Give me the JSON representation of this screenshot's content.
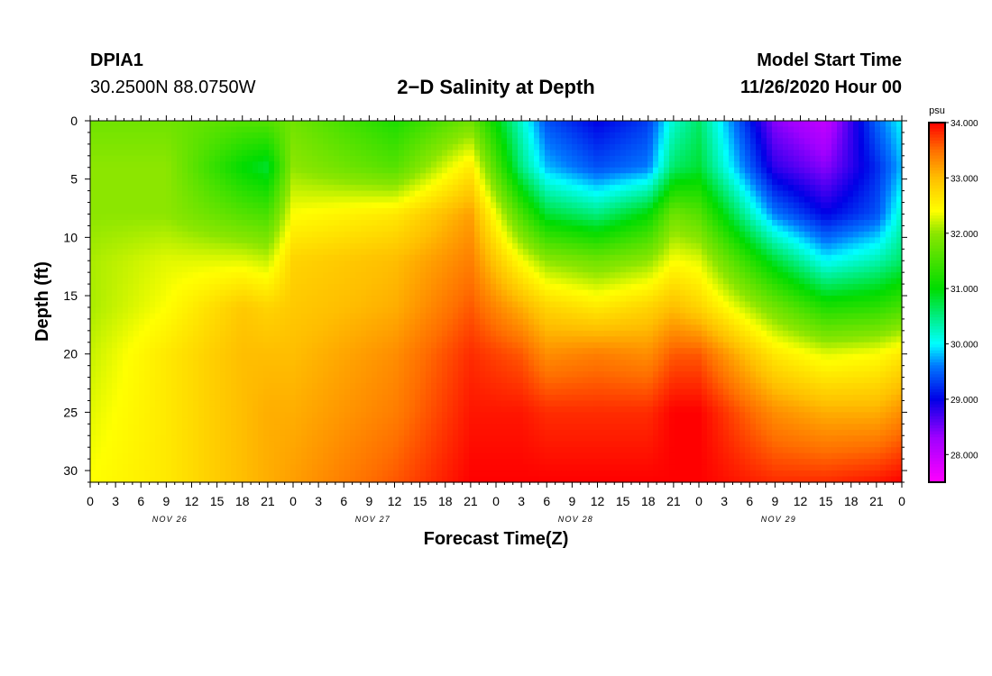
{
  "header": {
    "station_id": "DPIA1",
    "station_location": "30.2500N 88.0750W",
    "title": "2−D Salinity at Depth",
    "start_label": "Model Start Time",
    "start_value": "11/26/2020 Hour 00"
  },
  "chart_data": {
    "type": "heatmap",
    "title": "2−D Salinity at Depth",
    "xlabel": "Forecast Time(Z)",
    "ylabel": "Depth (ft)",
    "x_tick_labels": [
      "0",
      "3",
      "6",
      "9",
      "12",
      "15",
      "18",
      "21",
      "0",
      "3",
      "6",
      "9",
      "12",
      "15",
      "18",
      "21",
      "0",
      "3",
      "6",
      "9",
      "12",
      "15",
      "18",
      "21",
      "0",
      "3",
      "6",
      "9",
      "12",
      "15",
      "18",
      "21",
      "0"
    ],
    "x_hours": [
      0,
      3,
      6,
      9,
      12,
      15,
      18,
      21,
      24,
      27,
      30,
      33,
      36,
      39,
      42,
      45,
      48,
      51,
      54,
      57,
      60,
      63,
      66,
      69,
      72,
      75,
      78,
      81,
      84,
      87,
      90,
      93,
      96
    ],
    "day_labels": [
      {
        "text": "NOV 26",
        "hour": 9
      },
      {
        "text": "NOV 27",
        "hour": 33
      },
      {
        "text": "NOV 28",
        "hour": 57
      },
      {
        "text": "NOV 29",
        "hour": 81
      }
    ],
    "xlim": [
      0,
      96
    ],
    "y_ticks": [
      0,
      5,
      10,
      15,
      20,
      25,
      30
    ],
    "ylim": [
      0,
      31
    ],
    "y_inverted": true,
    "colorbar": {
      "unit": "psu",
      "ticks": [
        "34.000",
        "33.000",
        "32.000",
        "31.000",
        "30.000",
        "29.000",
        "28.000"
      ],
      "tick_values": [
        34,
        33,
        32,
        31,
        30,
        29,
        28
      ],
      "range": [
        27.5,
        34.0
      ]
    },
    "hours": [
      0,
      9,
      18,
      21,
      24,
      36,
      45,
      51,
      54,
      60,
      66,
      69,
      72,
      81,
      87,
      93,
      96
    ],
    "depths": [
      0,
      4,
      8,
      12,
      16,
      20,
      25,
      31
    ],
    "salinity": [
      [
        31.8,
        31.8,
        31.6,
        31.6,
        31.8,
        31.2,
        31.8,
        30.2,
        29.4,
        29.0,
        29.3,
        30.2,
        30.6,
        28.4,
        28.0,
        29.5,
        30.0
      ],
      [
        32.0,
        32.0,
        31.0,
        30.8,
        32.0,
        31.6,
        32.6,
        30.5,
        29.8,
        29.4,
        29.6,
        30.6,
        30.8,
        28.8,
        28.4,
        29.2,
        29.8
      ],
      [
        32.0,
        32.0,
        31.6,
        31.5,
        32.4,
        32.6,
        33.2,
        31.5,
        30.8,
        30.5,
        31.0,
        31.8,
        31.6,
        29.6,
        29.0,
        29.4,
        30.2
      ],
      [
        32.1,
        32.3,
        32.3,
        32.2,
        32.8,
        33.0,
        33.4,
        32.4,
        32.0,
        31.8,
        32.0,
        32.4,
        32.3,
        30.8,
        30.0,
        30.3,
        30.6
      ],
      [
        32.1,
        32.4,
        32.9,
        32.8,
        32.9,
        33.1,
        33.6,
        33.1,
        32.8,
        32.6,
        32.8,
        33.0,
        32.8,
        31.8,
        31.2,
        31.3,
        31.5
      ],
      [
        32.2,
        32.6,
        33.0,
        33.0,
        33.0,
        33.3,
        33.8,
        33.6,
        33.3,
        33.4,
        33.3,
        33.6,
        33.6,
        32.6,
        32.3,
        32.4,
        32.6
      ],
      [
        32.3,
        32.6,
        33.0,
        33.1,
        33.1,
        33.4,
        33.9,
        33.9,
        33.8,
        33.8,
        33.8,
        34.0,
        34.0,
        33.3,
        33.1,
        33.1,
        33.3
      ],
      [
        32.4,
        32.6,
        33.0,
        33.1,
        33.2,
        33.6,
        34.0,
        34.0,
        34.0,
        34.0,
        34.0,
        34.0,
        34.0,
        33.8,
        33.8,
        33.9,
        34.0
      ]
    ]
  }
}
